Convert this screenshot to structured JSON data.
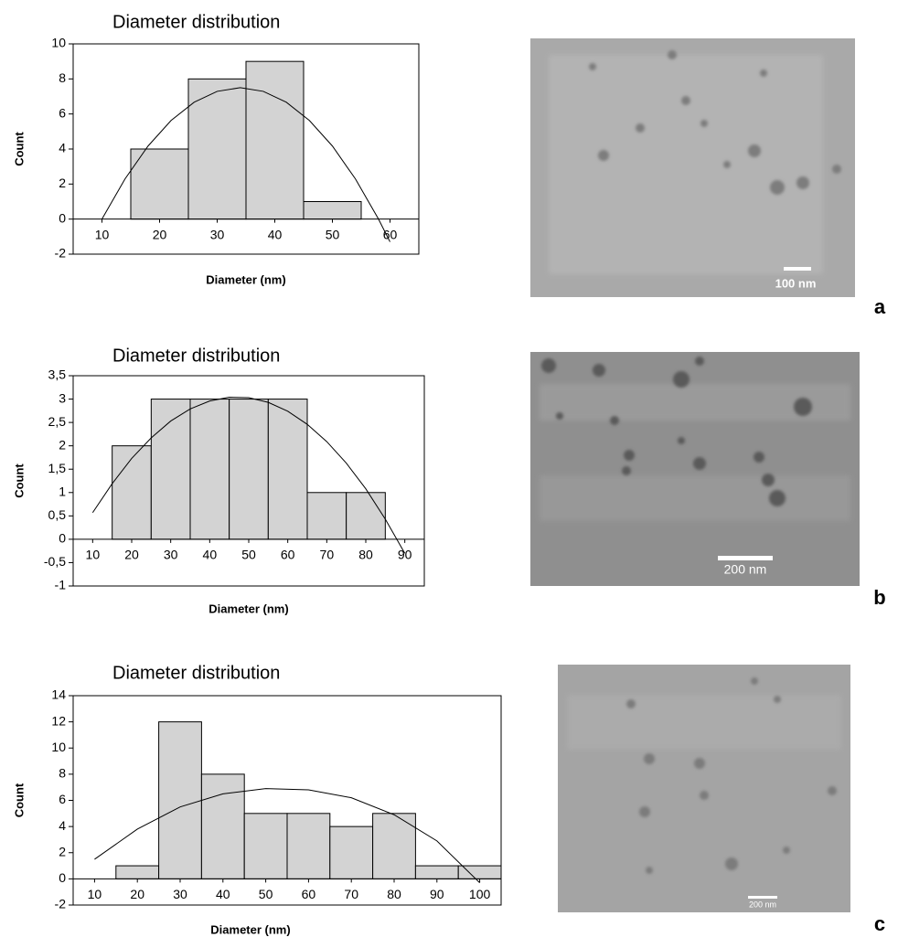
{
  "chart_data": [
    {
      "type": "histogram",
      "title": "Diameter distribution",
      "x_label": "Diameter (nm)",
      "y_label": "Count",
      "bins": [
        5,
        15,
        25,
        35,
        45,
        55,
        65
      ],
      "counts": [
        0,
        4,
        8,
        9,
        1,
        0
      ],
      "color": "#d3d3d3",
      "xlim": [
        5,
        65
      ],
      "xticks": [
        10,
        20,
        30,
        40,
        50,
        60
      ],
      "ylim": [
        -2,
        10
      ],
      "yticks": [
        -2,
        0,
        2,
        4,
        6,
        8,
        10
      ],
      "trendline": {
        "x": [
          10,
          14,
          18,
          22,
          26,
          30,
          34,
          38,
          42,
          46,
          50,
          54,
          58,
          60
        ],
        "y": [
          0,
          2.29,
          4.17,
          5.63,
          6.67,
          7.29,
          7.5,
          7.29,
          6.67,
          5.63,
          4.17,
          2.29,
          0,
          -1.3
        ]
      }
    },
    {
      "type": "histogram",
      "title": "Diameter distribution",
      "x_label": "Diameter (nm)",
      "y_label": "Count",
      "bins": [
        5,
        15,
        25,
        35,
        45,
        55,
        65,
        75,
        85,
        95
      ],
      "counts": [
        0,
        2,
        3,
        3,
        3,
        3,
        1,
        1,
        0
      ],
      "color": "#d3d3d3",
      "xlim": [
        5,
        95
      ],
      "xticks": [
        10,
        20,
        30,
        40,
        50,
        60,
        70,
        80,
        90
      ],
      "ylim": [
        -1,
        3.5
      ],
      "yticks": [
        -1,
        {
          "value": -0.5,
          "label": "-0,5"
        },
        0,
        {
          "value": 0.5,
          "label": "0,5"
        },
        1,
        {
          "value": 1.5,
          "label": "1,5"
        },
        2,
        {
          "value": 2.5,
          "label": "2,5"
        },
        3,
        {
          "value": 3.5,
          "label": "3,5"
        }
      ],
      "trendline": {
        "x": [
          10,
          15,
          20,
          25,
          30,
          35,
          40,
          45,
          50,
          55,
          60,
          65,
          70,
          75,
          80,
          85,
          90
        ],
        "y": [
          0.57,
          1.19,
          1.73,
          2.17,
          2.53,
          2.79,
          2.96,
          3.04,
          3.03,
          2.93,
          2.74,
          2.46,
          2.09,
          1.63,
          1.08,
          0.43,
          -0.3
        ]
      }
    },
    {
      "type": "histogram",
      "title": "Diameter distribution",
      "x_label": "Diameter (nm)",
      "y_label": "Count",
      "bins": [
        5,
        15,
        25,
        35,
        45,
        55,
        65,
        75,
        85,
        95,
        105
      ],
      "counts": [
        0,
        1,
        12,
        8,
        5,
        5,
        4,
        5,
        1,
        1
      ],
      "color": "#d3d3d3",
      "xlim": [
        5,
        105
      ],
      "xticks": [
        10,
        20,
        30,
        40,
        50,
        60,
        70,
        80,
        90,
        100
      ],
      "ylim": [
        -2,
        14
      ],
      "yticks": [
        -2,
        0,
        2,
        4,
        6,
        8,
        10,
        12,
        14
      ],
      "trendline": {
        "x": [
          10,
          20,
          30,
          40,
          50,
          60,
          70,
          80,
          90,
          100
        ],
        "y": [
          1.5,
          3.8,
          5.5,
          6.5,
          6.9,
          6.8,
          6.2,
          4.9,
          2.9,
          -0.3
        ]
      }
    }
  ],
  "images": [
    {
      "scale_label": "100 nm",
      "panel": "a"
    },
    {
      "scale_label": "200 nm",
      "panel": "b"
    },
    {
      "scale_label": "200 nm",
      "panel": "c"
    }
  ]
}
